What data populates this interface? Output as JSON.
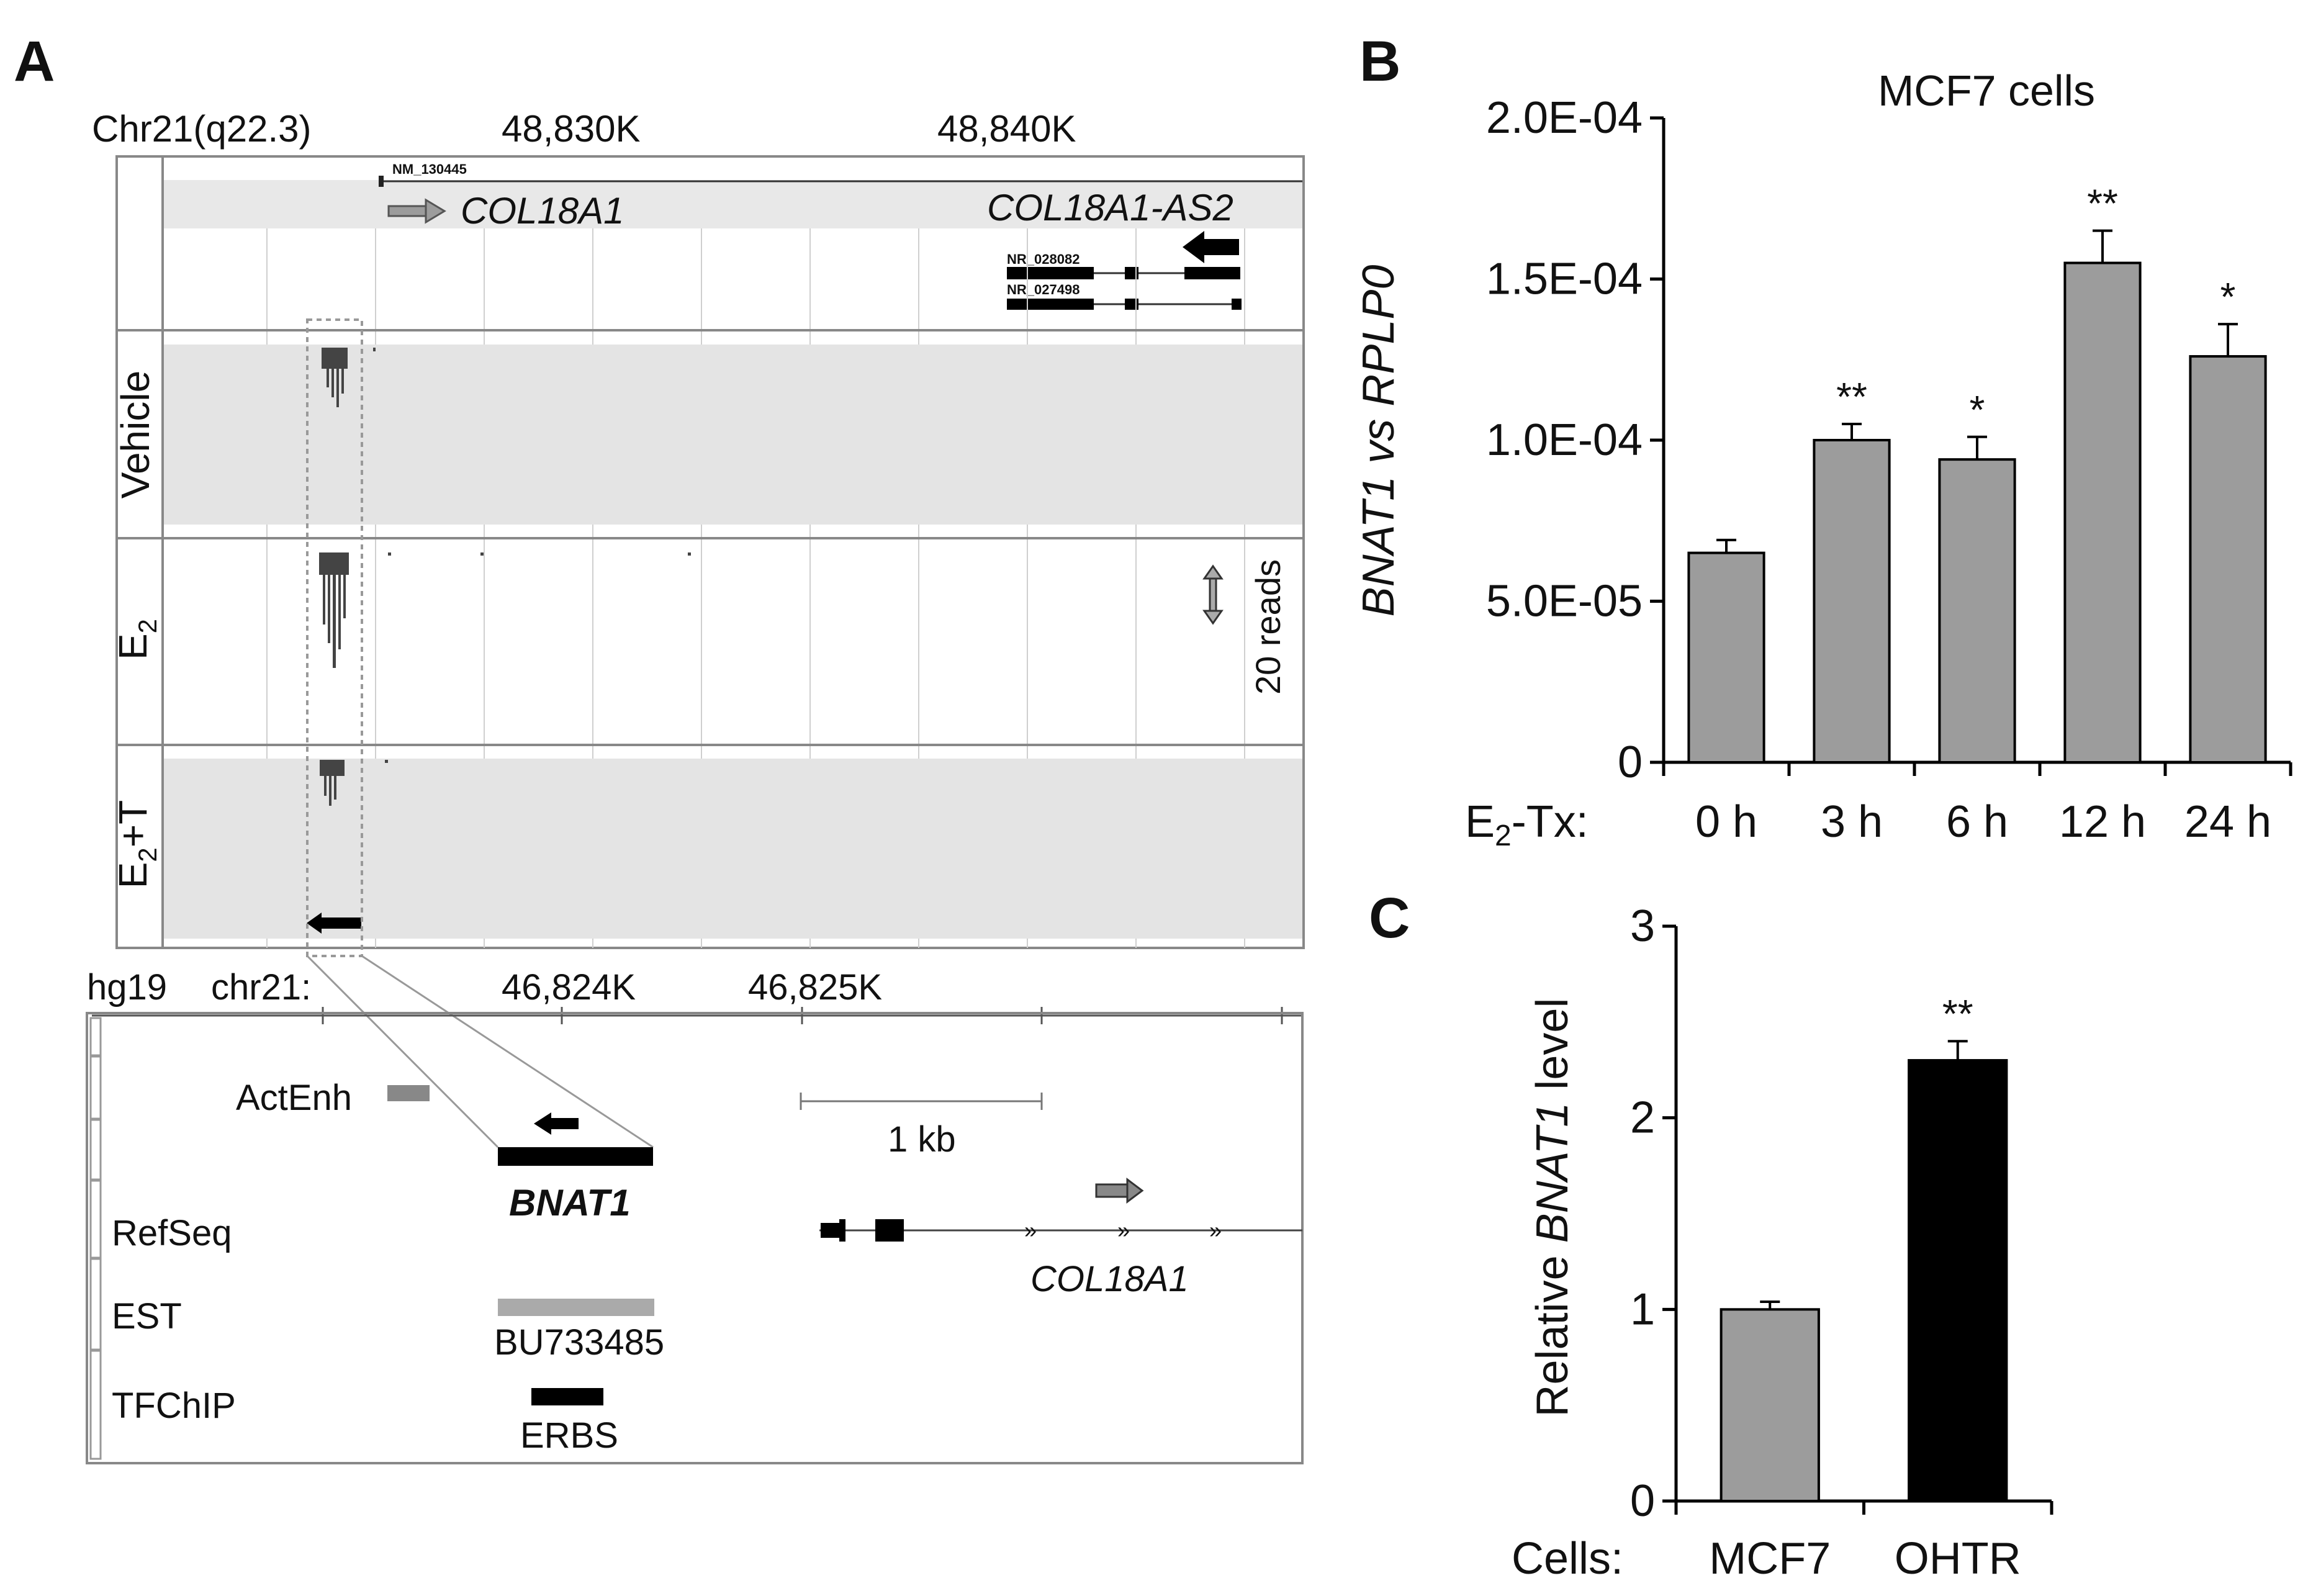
{
  "panels": {
    "A": {
      "label": "A"
    },
    "B": {
      "label": "B"
    },
    "C": {
      "label": "C"
    }
  },
  "browser": {
    "locus": "Chr21(q22.3)",
    "coords": [
      "48,830K",
      "48,840K"
    ],
    "refseq_id": "NM_130445",
    "gene1": "COL18A1",
    "gene2": "COL18A1-AS2",
    "nr1": "NR_028082",
    "nr2": "NR_027498",
    "tracks": [
      {
        "name": "Vehicle",
        "sub": ""
      },
      {
        "name": "E",
        "sub": "2"
      },
      {
        "name": "E",
        "sub": "2",
        "suffix": "+T"
      }
    ],
    "scale_label": "20 reads"
  },
  "ucsc": {
    "assembly": "hg19",
    "chrom": "chr21:",
    "coords": [
      "46,824K",
      "46,825K"
    ],
    "scale_bar": "1 kb",
    "rows": {
      "actenh": "ActEnh",
      "refseq": "RefSeq",
      "est": "EST",
      "tfchip": "TFChIP"
    },
    "gene_bnat1": "BNAT1",
    "gene_col18a1": "COL18A1",
    "est_id": "BU733485",
    "erbs": "ERBS"
  },
  "colors": {
    "bar_gray": "#9c9c9c",
    "bar_black": "#000000",
    "track_bg": "#e4e4e4",
    "header_bg": "#e8e8e8"
  },
  "chart_data": [
    {
      "type": "bar",
      "title": "MCF7 cells",
      "ylabel_parts": [
        "BNAT1",
        " vs ",
        "RPLP0"
      ],
      "xlabel_prefix": "E",
      "xlabel_sub": "2",
      "xlabel_suffix": "-Tx:",
      "categories": [
        "0 h",
        "3 h",
        "6 h",
        "12 h",
        "24 h"
      ],
      "values": [
        6.5e-05,
        0.0001,
        9.4e-05,
        0.000155,
        0.000126
      ],
      "errors": [
        4e-06,
        5e-06,
        7e-06,
        1e-05,
        1e-05
      ],
      "significance": [
        "",
        "**",
        "*",
        "**",
        "*"
      ],
      "ylim": [
        0,
        0.0002
      ],
      "yticks": [
        0,
        5e-05,
        0.0001,
        0.00015,
        0.0002
      ],
      "ytick_labels": [
        "0",
        "5.0E-05",
        "1.0E-04",
        "1.5E-04",
        "2.0E-04"
      ]
    },
    {
      "type": "bar",
      "title": "",
      "ylabel_parts": [
        "Relative ",
        "BNAT1",
        " level"
      ],
      "xlabel": "Cells:",
      "categories": [
        "MCF7",
        "OHTR"
      ],
      "values": [
        1.0,
        2.3
      ],
      "errors": [
        0.04,
        0.1
      ],
      "significance": [
        "",
        "**"
      ],
      "bar_colors": [
        "#9c9c9c",
        "#000000"
      ],
      "ylim": [
        0,
        3
      ],
      "yticks": [
        0,
        1,
        2,
        3
      ],
      "ytick_labels": [
        "0",
        "1",
        "2",
        "3"
      ]
    }
  ]
}
